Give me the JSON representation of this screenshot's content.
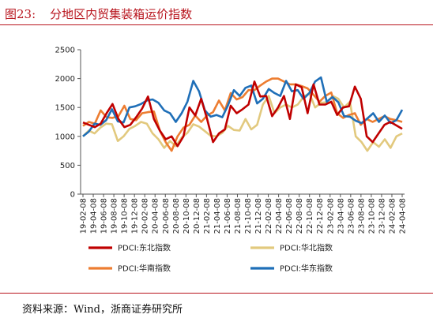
{
  "figure": {
    "number": "图23:",
    "title": "分地区内贸集装箱运价指数",
    "source": "资料来源：Wind，浙商证券研究所"
  },
  "chart_data": {
    "type": "line",
    "title": "",
    "xlabel": "",
    "ylabel": "",
    "ylim": [
      0,
      2500
    ],
    "yticks": [
      0,
      500,
      1000,
      1500,
      2000,
      2500
    ],
    "xticks": [
      "19-02-08",
      "19-04-08",
      "19-06-08",
      "19-08-08",
      "19-10-08",
      "19-12-08",
      "20-02-08",
      "20-04-08",
      "20-06-08",
      "20-08-08",
      "20-10-08",
      "20-12-08",
      "21-02-08",
      "21-04-08",
      "21-06-08",
      "21-08-08",
      "21-10-08",
      "21-12-08",
      "22-02-08",
      "22-04-08",
      "22-06-08",
      "22-08-08",
      "22-10-08",
      "22-12-08",
      "23-02-08",
      "23-04-08",
      "23-06-08",
      "23-08-08",
      "23-10-08",
      "23-12-08",
      "24-02-08",
      "24-04-08"
    ],
    "grid": false,
    "legend_position": "bottom",
    "series": [
      {
        "name": "PDCI:东北指数",
        "color": "#c00000",
        "values": [
          1240,
          1200,
          1160,
          1220,
          1400,
          1560,
          1300,
          1160,
          1200,
          1330,
          1480,
          1690,
          1300,
          1100,
          950,
          1000,
          830,
          1000,
          1500,
          1360,
          1650,
          1300,
          900,
          1050,
          1120,
          1530,
          1400,
          1470,
          1550,
          1950,
          1690,
          1700,
          1350,
          1500,
          1700,
          1300,
          1900,
          1850,
          1400,
          1900,
          1550,
          1550,
          1600,
          1370,
          1500,
          1520,
          1860,
          1650,
          1000,
          900,
          1050,
          1200,
          1250,
          1190,
          1130
        ]
      },
      {
        "name": "PDCI:华北指数",
        "color": "#e2c97e",
        "values": [
          1000,
          1100,
          1050,
          1150,
          1220,
          1210,
          920,
          1000,
          1130,
          1180,
          1250,
          1220,
          1050,
          950,
          800,
          920,
          830,
          980,
          1060,
          1210,
          1170,
          1090,
          1010,
          1000,
          1060,
          1180,
          1110,
          1100,
          1300,
          1120,
          1200,
          1550,
          1700,
          1400,
          1500,
          1550,
          1500,
          1550,
          1680,
          1750,
          1500,
          1580,
          1590,
          1700,
          1650,
          1500,
          1600,
          1000,
          900,
          750,
          900,
          820,
          950,
          800,
          1000,
          1050
        ]
      },
      {
        "name": "PDCI:华南指数",
        "color": "#ed7d31",
        "values": [
          1180,
          1250,
          1220,
          1450,
          1330,
          1320,
          1350,
          1530,
          1300,
          1280,
          1400,
          1420,
          1430,
          1100,
          900,
          750,
          1000,
          1150,
          1200,
          1360,
          1250,
          1360,
          1420,
          1620,
          1450,
          1750,
          1640,
          1680,
          1800,
          1800,
          1880,
          1950,
          2000,
          2000,
          1950,
          1900,
          1900,
          1870,
          1830,
          1720,
          1600,
          1700,
          1760,
          1400,
          1320,
          1370,
          1400,
          1200,
          1300,
          1250,
          1300,
          1350,
          1300,
          1280,
          1250
        ]
      },
      {
        "name": "PDCI:华东指数",
        "color": "#1f6fb8",
        "values": [
          1000,
          1080,
          1220,
          1200,
          1280,
          1470,
          1260,
          1240,
          1500,
          1520,
          1560,
          1620,
          1640,
          1580,
          1450,
          1400,
          1250,
          1400,
          1600,
          1960,
          1780,
          1450,
          1340,
          1370,
          1330,
          1540,
          1800,
          1700,
          1840,
          1880,
          1570,
          1650,
          1820,
          1750,
          1700,
          1960,
          1780,
          1800,
          1650,
          1750,
          1950,
          2020,
          1600,
          1680,
          1590,
          1350,
          1340,
          1270,
          1230,
          1310,
          1400,
          1250,
          1360,
          1230,
          1280,
          1460
        ]
      }
    ]
  }
}
